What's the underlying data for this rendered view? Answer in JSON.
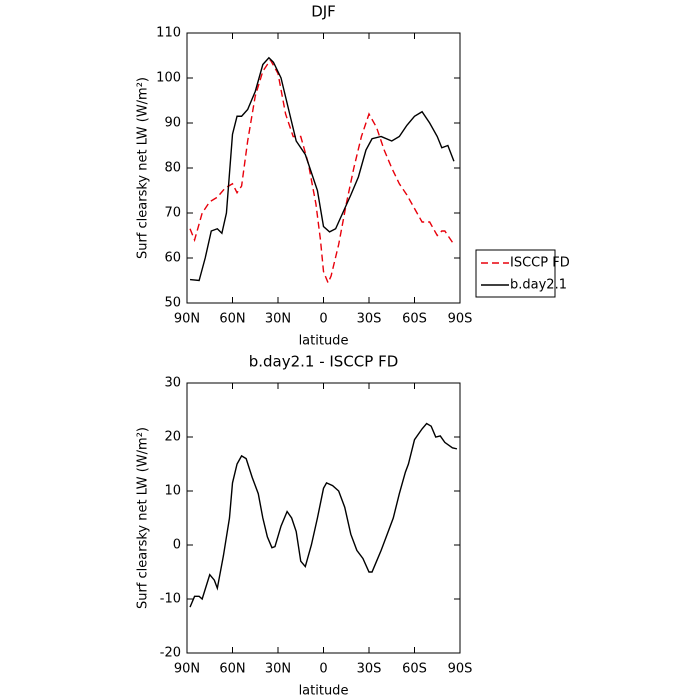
{
  "chart_data": [
    {
      "type": "line",
      "title": "DJF",
      "xlabel": "latitude",
      "ylabel": "Surf clearsky net LW (W/m²)",
      "xlim": [
        90,
        -90
      ],
      "xticks": [
        {
          "value": 90,
          "label": "90N"
        },
        {
          "value": 60,
          "label": "60N"
        },
        {
          "value": 30,
          "label": "30N"
        },
        0,
        {
          "value": -30,
          "label": "30S"
        },
        {
          "value": -60,
          "label": "60S"
        },
        {
          "value": -90,
          "label": "90S"
        }
      ],
      "ylim": [
        50,
        110
      ],
      "yticks": [
        50,
        60,
        70,
        80,
        90,
        100,
        110
      ],
      "legend": "outside-right",
      "series": [
        {
          "name": "ISCCP FD",
          "color": "#e8000b",
          "style": "dashed",
          "x": [
            88,
            85,
            80,
            75,
            70,
            65,
            60,
            57,
            54,
            50,
            45,
            40,
            35,
            30,
            25,
            20,
            15,
            10,
            5,
            2,
            0,
            -3,
            -5,
            -10,
            -15,
            -20,
            -25,
            -30,
            -35,
            -40,
            -45,
            -50,
            -55,
            -60,
            -65,
            -70,
            -75,
            -78,
            -80,
            -85
          ],
          "values": [
            66.5,
            64,
            70,
            72.5,
            73.5,
            75.5,
            76.5,
            74.5,
            76,
            86,
            96,
            101.5,
            104,
            101,
            92,
            87,
            87,
            81,
            72,
            64,
            57,
            54.5,
            56,
            63,
            72,
            80,
            87,
            92,
            89,
            84,
            80,
            76.5,
            74,
            71,
            68,
            68,
            65,
            66,
            66,
            63.5
          ]
        },
        {
          "name": "b.day2.1",
          "color": "#000000",
          "style": "solid",
          "x": [
            88,
            82,
            78,
            74,
            70,
            67,
            64,
            60,
            57,
            54,
            50,
            45,
            40,
            36,
            33,
            28,
            23,
            18,
            12,
            8,
            4,
            0,
            -4,
            -8,
            -12,
            -18,
            -23,
            -28,
            -32,
            -38,
            -45,
            -50,
            -55,
            -60,
            -65,
            -70,
            -75,
            -78,
            -82,
            -86
          ],
          "values": [
            55.2,
            55,
            60,
            66,
            66.5,
            65.5,
            70,
            87.5,
            91.5,
            91.5,
            93,
            97,
            103,
            104.5,
            103.5,
            100,
            93,
            86,
            83,
            79,
            75,
            67,
            65.8,
            66.5,
            69.5,
            74,
            78,
            84,
            86.5,
            87,
            86,
            87,
            89.5,
            91.5,
            92.5,
            90,
            87,
            84.5,
            85,
            81.5
          ]
        }
      ]
    },
    {
      "type": "line",
      "title": "b.day2.1 - ISCCP FD",
      "xlabel": "latitude",
      "ylabel": "Surf clearsky net LW (W/m²)",
      "xlim": [
        90,
        -90
      ],
      "xticks": [
        {
          "value": 90,
          "label": "90N"
        },
        {
          "value": 60,
          "label": "60N"
        },
        {
          "value": 30,
          "label": "30N"
        },
        0,
        {
          "value": -30,
          "label": "30S"
        },
        {
          "value": -60,
          "label": "60S"
        },
        {
          "value": -90,
          "label": "90S"
        }
      ],
      "ylim": [
        -20,
        30
      ],
      "yticks": [
        -20,
        -10,
        0,
        10,
        20,
        30
      ],
      "color": "#000000",
      "x": [
        88,
        85,
        82,
        80,
        75,
        72,
        70,
        66,
        62,
        60,
        57,
        54,
        51,
        47,
        43,
        40,
        37,
        34,
        32,
        28,
        24,
        21,
        18,
        15,
        12,
        8,
        4,
        0,
        -2,
        -6,
        -10,
        -14,
        -18,
        -22,
        -26,
        -30,
        -32,
        -35,
        -38,
        -42,
        -46,
        -50,
        -54,
        -56,
        -60,
        -65,
        -68,
        -71,
        -74,
        -77,
        -80,
        -85,
        -88
      ],
      "values": [
        -11.5,
        -9.5,
        -9.5,
        -10,
        -5.5,
        -6.5,
        -8,
        -2,
        5,
        11.5,
        15,
        16.5,
        16,
        12.5,
        9.5,
        5,
        1.5,
        -0.5,
        -0.3,
        3.5,
        6.2,
        5,
        2.5,
        -3,
        -4,
        0,
        5,
        10.5,
        11.5,
        11,
        10,
        7,
        2,
        -1,
        -2.5,
        -5,
        -5,
        -3,
        -1,
        2,
        5,
        9.5,
        13.5,
        15,
        19.5,
        21.5,
        22.5,
        22,
        20,
        20.2,
        19,
        18,
        17.8
      ]
    }
  ]
}
